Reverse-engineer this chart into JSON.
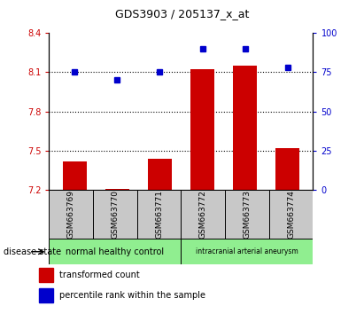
{
  "title": "GDS3903 / 205137_x_at",
  "samples": [
    "GSM663769",
    "GSM663770",
    "GSM663771",
    "GSM663772",
    "GSM663773",
    "GSM663774"
  ],
  "transformed_count": [
    7.42,
    7.21,
    7.44,
    8.12,
    8.15,
    7.52
  ],
  "percentile_rank": [
    75,
    70,
    75,
    90,
    90,
    78
  ],
  "ylim_left": [
    7.2,
    8.4
  ],
  "ylim_right": [
    0,
    100
  ],
  "yticks_left": [
    7.2,
    7.5,
    7.8,
    8.1,
    8.4
  ],
  "yticks_right": [
    0,
    25,
    50,
    75,
    100
  ],
  "bar_color": "#CC0000",
  "dot_color": "#0000CC",
  "bar_bottom": 7.2,
  "xlabel_area_color": "#C8C8C8",
  "group1_label": "normal healthy control",
  "group2_label": "intracranial arterial aneurysm",
  "group_color": "#90EE90",
  "legend_bar_label": "transformed count",
  "legend_dot_label": "percentile rank within the sample",
  "disease_state_label": "disease state",
  "title_fontsize": 9,
  "tick_fontsize": 7,
  "label_fontsize": 6.5,
  "group_fontsize1": 7,
  "group_fontsize2": 5.5,
  "legend_fontsize": 7
}
